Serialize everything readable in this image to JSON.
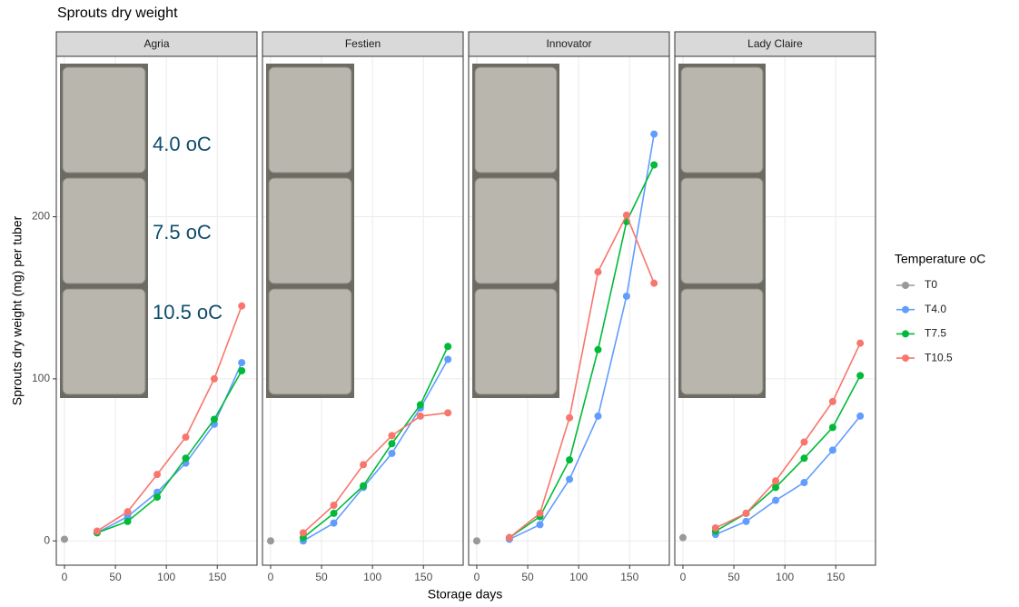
{
  "figure": {
    "title": "Sprouts dry weight",
    "xlabel": "Storage days",
    "ylabel": "Sprouts dry weight (mg) per tuber",
    "legend_title": "Temperature oC"
  },
  "chart_data": [
    {
      "type": "line",
      "subtitle": "Agria",
      "annotations": [
        "4.0 oC",
        "7.5 oC",
        "10.5 oC"
      ],
      "x": [
        0,
        32,
        62,
        91,
        119,
        147,
        174
      ],
      "xlim": [
        -8,
        189
      ],
      "xticks": [
        0,
        50,
        100,
        150
      ],
      "ylim": [
        -15,
        299
      ],
      "yticks": [
        0,
        100,
        200
      ],
      "grid": true,
      "series": [
        {
          "name": "T0",
          "color": "#999999",
          "values": [
            1,
            null,
            null,
            null,
            null,
            null,
            null
          ]
        },
        {
          "name": "T4.0",
          "color": "#619CFF",
          "values": [
            null,
            5,
            15,
            30,
            48,
            72,
            110
          ]
        },
        {
          "name": "T7.5",
          "color": "#00BA38",
          "values": [
            null,
            5,
            12,
            27,
            51,
            75,
            105
          ]
        },
        {
          "name": "T10.5",
          "color": "#F8766D",
          "values": [
            null,
            6,
            18,
            41,
            64,
            100,
            145
          ]
        }
      ]
    },
    {
      "type": "line",
      "subtitle": "Festien",
      "x": [
        0,
        32,
        62,
        91,
        119,
        147,
        174
      ],
      "xlim": [
        -8,
        189
      ],
      "xticks": [
        0,
        50,
        100,
        150
      ],
      "ylim": [
        -15,
        299
      ],
      "yticks": [
        0,
        100,
        200
      ],
      "grid": true,
      "series": [
        {
          "name": "T0",
          "color": "#999999",
          "values": [
            0,
            null,
            null,
            null,
            null,
            null,
            null
          ]
        },
        {
          "name": "T4.0",
          "color": "#619CFF",
          "values": [
            null,
            0,
            11,
            33,
            54,
            82,
            112
          ]
        },
        {
          "name": "T7.5",
          "color": "#00BA38",
          "values": [
            null,
            2,
            17,
            34,
            60,
            84,
            120
          ]
        },
        {
          "name": "T10.5",
          "color": "#F8766D",
          "values": [
            null,
            5,
            22,
            47,
            65,
            77,
            79
          ]
        }
      ]
    },
    {
      "type": "line",
      "subtitle": "Innovator",
      "x": [
        0,
        32,
        62,
        91,
        119,
        147,
        174
      ],
      "xlim": [
        -8,
        189
      ],
      "xticks": [
        0,
        50,
        100,
        150
      ],
      "ylim": [
        -15,
        299
      ],
      "yticks": [
        0,
        100,
        200
      ],
      "grid": true,
      "series": [
        {
          "name": "T0",
          "color": "#999999",
          "values": [
            0,
            null,
            null,
            null,
            null,
            null,
            null
          ]
        },
        {
          "name": "T4.0",
          "color": "#619CFF",
          "values": [
            null,
            1,
            10,
            38,
            77,
            151,
            251
          ]
        },
        {
          "name": "T7.5",
          "color": "#00BA38",
          "values": [
            null,
            2,
            15,
            50,
            118,
            197,
            232
          ]
        },
        {
          "name": "T10.5",
          "color": "#F8766D",
          "values": [
            null,
            2,
            17,
            76,
            166,
            201,
            159
          ]
        }
      ]
    },
    {
      "type": "line",
      "subtitle": "Lady Claire",
      "x": [
        0,
        32,
        62,
        91,
        119,
        147,
        174
      ],
      "xlim": [
        -8,
        189
      ],
      "xticks": [
        0,
        50,
        100,
        150
      ],
      "ylim": [
        -15,
        299
      ],
      "yticks": [
        0,
        100,
        200
      ],
      "grid": true,
      "series": [
        {
          "name": "T0",
          "color": "#999999",
          "values": [
            2,
            null,
            null,
            null,
            null,
            null,
            null
          ]
        },
        {
          "name": "T4.0",
          "color": "#619CFF",
          "values": [
            null,
            4,
            12,
            25,
            36,
            56,
            77
          ]
        },
        {
          "name": "T7.5",
          "color": "#00BA38",
          "values": [
            null,
            6,
            17,
            33,
            51,
            70,
            102
          ]
        },
        {
          "name": "T10.5",
          "color": "#F8766D",
          "values": [
            null,
            8,
            17,
            37,
            61,
            86,
            122
          ]
        }
      ]
    }
  ]
}
